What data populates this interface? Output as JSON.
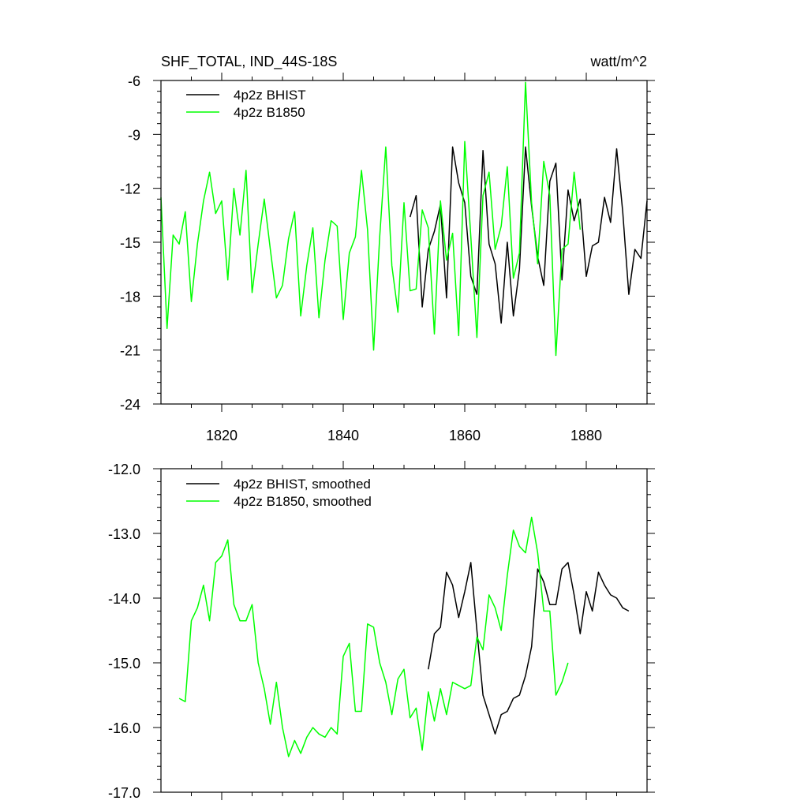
{
  "chart_data": [
    {
      "type": "line",
      "title": "SHF_TOTAL, IND_44S-18S",
      "units": "watt/m^2",
      "xlim": [
        1810,
        1890
      ],
      "ylim": [
        -24,
        -6
      ],
      "xticks": [
        1820,
        1840,
        1860,
        1880
      ],
      "yticks": [
        -24,
        -21,
        -18,
        -15,
        -12,
        -9,
        -6
      ],
      "ytick_labels": [
        "-24",
        "-21",
        "-18",
        "-15",
        "-12",
        "-9",
        "-6"
      ],
      "legend_position": "top-left",
      "series": [
        {
          "name": "4p2z BHIST",
          "color": "#000000",
          "x_start": 1851,
          "values": [
            -13.6,
            -12.4,
            -18.6,
            -15.4,
            -14.4,
            -12.9,
            -18.1,
            -9.7,
            -11.7,
            -12.8,
            -16.9,
            -17.9,
            -9.9,
            -15.1,
            -16.2,
            -19.5,
            -15.0,
            -19.1,
            -16.5,
            -9.7,
            -13.0,
            -15.8,
            -17.4,
            -11.6,
            -10.6,
            -17.1,
            -12.1,
            -13.8,
            -12.6,
            -16.9,
            -15.2,
            -15.0,
            -12.5,
            -13.9,
            -9.8,
            -13.3,
            -17.9,
            -15.4,
            -15.9,
            -12.7
          ]
        },
        {
          "name": "4p2z B1850",
          "color": "#00ff00",
          "x_start": 1810,
          "values": [
            -12.5,
            -19.8,
            -14.6,
            -15.1,
            -13.3,
            -18.3,
            -15.1,
            -12.7,
            -11.1,
            -13.4,
            -12.7,
            -17.1,
            -12.0,
            -14.6,
            -11.0,
            -17.8,
            -15.1,
            -12.6,
            -15.4,
            -18.1,
            -17.4,
            -14.8,
            -13.3,
            -19.1,
            -16.3,
            -14.2,
            -19.2,
            -16.0,
            -13.8,
            -14.1,
            -19.3,
            -15.6,
            -14.7,
            -11.0,
            -14.3,
            -21.0,
            -14.7,
            -9.7,
            -16.3,
            -18.9,
            -12.8,
            -17.7,
            -17.6,
            -13.2,
            -14.2,
            -20.1,
            -12.7,
            -16.0,
            -14.5,
            -20.2,
            -9.4,
            -14.7,
            -20.3,
            -12.4,
            -11.1,
            -15.4,
            -14.1,
            -10.8,
            -17.0,
            -15.6,
            -6.1,
            -12.8,
            -16.2,
            -10.5,
            -12.4,
            -21.3,
            -15.4,
            -15.1,
            -11.1,
            -14.3
          ]
        }
      ]
    },
    {
      "type": "line",
      "xlim": [
        1810,
        1890
      ],
      "ylim": [
        -17.0,
        -12.0
      ],
      "xticks": [
        1820,
        1840,
        1860,
        1880
      ],
      "yticks": [
        -17.0,
        -16.0,
        -15.0,
        -14.0,
        -13.0,
        -12.0
      ],
      "ytick_labels": [
        "-17.0",
        "-16.0",
        "-15.0",
        "-14.0",
        "-13.0",
        "-12.0"
      ],
      "legend_position": "top-left",
      "series": [
        {
          "name": "4p2z BHIST, smoothed",
          "color": "#000000",
          "x_start": 1854,
          "values": [
            -15.1,
            -14.55,
            -14.45,
            -13.6,
            -13.8,
            -14.3,
            -13.9,
            -13.45,
            -14.5,
            -15.5,
            -15.8,
            -16.1,
            -15.8,
            -15.75,
            -15.55,
            -15.5,
            -15.2,
            -14.75,
            -13.55,
            -13.75,
            -14.1,
            -14.1,
            -13.55,
            -13.45,
            -13.95,
            -14.55,
            -13.9,
            -14.2,
            -13.6,
            -13.8,
            -13.95,
            -14.0,
            -14.15,
            -14.2
          ]
        },
        {
          "name": "4p2z B1850, smoothed",
          "color": "#00ff00",
          "x_start": 1813,
          "values": [
            -15.55,
            -15.6,
            -14.35,
            -14.15,
            -13.8,
            -14.35,
            -13.45,
            -13.35,
            -13.1,
            -14.1,
            -14.35,
            -14.35,
            -14.1,
            -15.0,
            -15.4,
            -15.95,
            -15.3,
            -16.0,
            -16.45,
            -16.2,
            -16.4,
            -16.15,
            -16.0,
            -16.1,
            -16.15,
            -16.0,
            -16.1,
            -14.9,
            -14.7,
            -15.75,
            -15.75,
            -14.4,
            -14.45,
            -15.0,
            -15.3,
            -15.8,
            -15.25,
            -15.1,
            -15.85,
            -15.7,
            -16.35,
            -15.45,
            -15.9,
            -15.4,
            -15.8,
            -15.3,
            -15.35,
            -15.4,
            -15.35,
            -14.6,
            -14.8,
            -13.95,
            -14.15,
            -14.5,
            -13.65,
            -12.95,
            -13.2,
            -13.3,
            -12.75,
            -13.3,
            -14.2,
            -14.2,
            -15.5,
            -15.3,
            -15.0
          ]
        }
      ]
    }
  ]
}
